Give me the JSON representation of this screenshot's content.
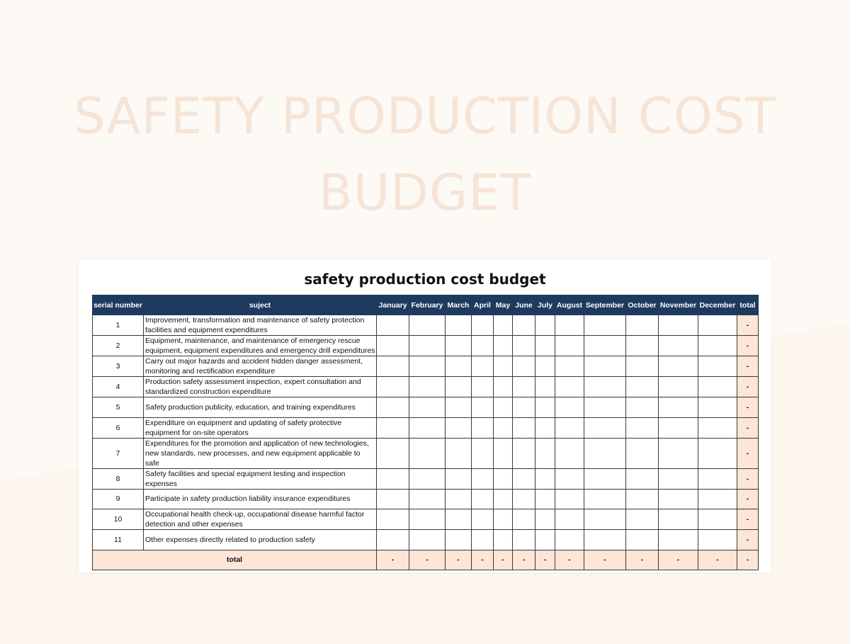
{
  "page": {
    "hero_title_line1": "SAFETY PRODUCTION COST",
    "hero_title_line2": "BUDGET",
    "sheet_title": "safety production cost budget"
  },
  "colors": {
    "background": "#fdf9f5",
    "hero_text": "#f6e4d6",
    "header_bg": "#1f3a5f",
    "total_bg": "#fde6d7"
  },
  "table": {
    "headers": {
      "serial": "serial number",
      "subject": "suject",
      "months": [
        "January",
        "February",
        "March",
        "April",
        "May",
        "June",
        "July",
        "August",
        "September",
        "October",
        "November",
        "December"
      ],
      "total": "total"
    },
    "rows": [
      {
        "serial": "1",
        "subject": "Improvement, transformation and maintenance of safety protection facilities and equipment expenditures",
        "total": "-"
      },
      {
        "serial": "2",
        "subject": "Equipment, maintenance, and maintenance of emergency rescue equipment, equipment expenditures and emergency drill expenditures",
        "total": "-"
      },
      {
        "serial": "3",
        "subject": "Carry out major hazards and accident hidden danger assessment, monitoring and rectification expenditure",
        "total": "-"
      },
      {
        "serial": "4",
        "subject": "Production safety assessment inspection, expert consultation and standardized construction expenditure",
        "total": "-"
      },
      {
        "serial": "5",
        "subject": "Safety production publicity, education, and training expenditures",
        "total": "-"
      },
      {
        "serial": "6",
        "subject": "Expenditure on equipment and updating of safety protective equipment for on-site operators",
        "total": "-"
      },
      {
        "serial": "7",
        "subject": "Expenditures for the promotion and application of new technologies, new standards, new processes, and new equipment applicable to safe",
        "total": "-"
      },
      {
        "serial": "8",
        "subject": "Safety facilities and special equipment testing and inspection expenses",
        "total": "-"
      },
      {
        "serial": "9",
        "subject": "Participate in safety production liability insurance expenditures",
        "total": "-"
      },
      {
        "serial": "10",
        "subject": "Occupational health check-up, occupational disease harmful factor detection and other expenses",
        "total": "-"
      },
      {
        "serial": "11",
        "subject": "Other expenses directly related to production safety",
        "total": "-"
      }
    ],
    "total_row": {
      "label": "total",
      "months": [
        "-",
        "-",
        "-",
        "-",
        "-",
        "-",
        "-",
        "-",
        "-",
        "-",
        "-",
        "-"
      ],
      "total": "-"
    }
  }
}
